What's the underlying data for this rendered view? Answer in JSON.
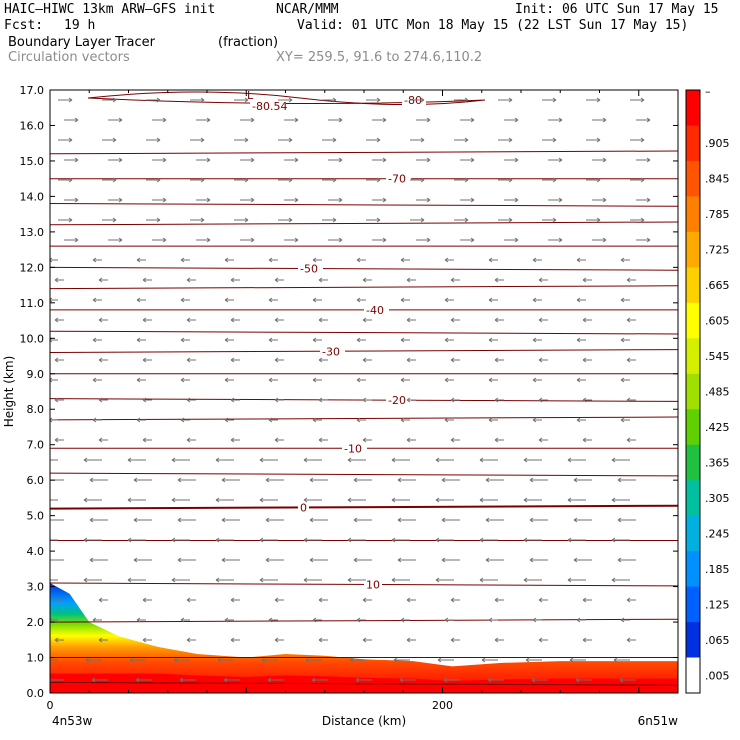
{
  "header": {
    "model": "HAIC–HIWC 13km ARW–GFS init",
    "center": "NCAR/MMM",
    "init": "Init: 06 UTC Sun 17 May 15",
    "fcst_label": "Fcst:",
    "fcst_value": "19 h",
    "valid": "Valid: 01 UTC Mon 18 May 15 (22 LST Sun 17 May 15)",
    "field1": "Boundary Layer Tracer",
    "field1_units": "(fraction)",
    "field2": "Circulation vectors",
    "xy": "XY= 259.5, 91.6 to 274.6,110.2"
  },
  "chart_data": {
    "type": "heatmap",
    "description_fields": [
      "Boundary Layer Tracer (fraction) shaded",
      "Temperature contours",
      "Circulation vectors"
    ],
    "ylabel": "Height (km)",
    "xlabel": "Distance (km)",
    "ylim": [
      0,
      17
    ],
    "xlim": [
      0,
      320
    ],
    "y_ticks": [
      "0.0",
      "1.0",
      "2.0",
      "3.0",
      "4.0",
      "5.0",
      "6.0",
      "7.0",
      "8.0",
      "9.0",
      "10.0",
      "11.0",
      "12.0",
      "13.0",
      "14.0",
      "15.0",
      "16.0",
      "17.0"
    ],
    "x_ticks": [
      {
        "v": 0,
        "label": "0"
      },
      {
        "v": 200,
        "label": "200"
      }
    ],
    "x_left_label": "4n53w",
    "x_right_label": "6n51w",
    "colorbar": {
      "labels": [
        "–",
        ".905",
        ".845",
        ".785",
        ".725",
        ".665",
        ".605",
        ".545",
        ".485",
        ".425",
        ".365",
        ".305",
        ".245",
        ".185",
        ".125",
        ".065",
        ".005"
      ],
      "colors": [
        "#ff0000",
        "#ff2a00",
        "#ff5500",
        "#ff8000",
        "#ffaa00",
        "#ffd000",
        "#ffff00",
        "#d4f000",
        "#a0e000",
        "#60d000",
        "#20c040",
        "#00c0a0",
        "#00b0e0",
        "#0090ff",
        "#0060ff",
        "#0030e0",
        "#ffffff"
      ]
    },
    "contours": [
      {
        "z": 0.3,
        "label": ""
      },
      {
        "z": 1.0,
        "label": ""
      },
      {
        "z": 2.0,
        "label": ""
      },
      {
        "z": 3.1,
        "label": "10"
      },
      {
        "z": 4.3,
        "label": ""
      },
      {
        "z": 5.2,
        "label": "0"
      },
      {
        "z": 6.2,
        "label": ""
      },
      {
        "z": 6.9,
        "label": "-10"
      },
      {
        "z": 7.7,
        "label": ""
      },
      {
        "z": 8.3,
        "label": "-20"
      },
      {
        "z": 9.0,
        "label": ""
      },
      {
        "z": 9.6,
        "label": "-30"
      },
      {
        "z": 10.2,
        "label": ""
      },
      {
        "z": 10.8,
        "label": "-40"
      },
      {
        "z": 11.4,
        "label": ""
      },
      {
        "z": 12.0,
        "label": "-50"
      },
      {
        "z": 12.6,
        "label": ""
      },
      {
        "z": 13.2,
        "label": ""
      },
      {
        "z": 13.8,
        "label": ""
      },
      {
        "z": 14.5,
        "label": "-70"
      },
      {
        "z": 15.2,
        "label": ""
      }
    ],
    "top_contour": {
      "label": "-80",
      "min_label": "-80.54",
      "low_marker": "L"
    },
    "tracer_top_profile": [
      {
        "x": 0,
        "z": 3.1
      },
      {
        "x": 10,
        "z": 2.8
      },
      {
        "x": 20,
        "z": 2.0
      },
      {
        "x": 35,
        "z": 1.6
      },
      {
        "x": 55,
        "z": 1.3
      },
      {
        "x": 75,
        "z": 1.1
      },
      {
        "x": 100,
        "z": 1.0
      },
      {
        "x": 120,
        "z": 1.1
      },
      {
        "x": 140,
        "z": 1.05
      },
      {
        "x": 160,
        "z": 0.95
      },
      {
        "x": 185,
        "z": 0.9
      },
      {
        "x": 205,
        "z": 0.75
      },
      {
        "x": 230,
        "z": 0.85
      },
      {
        "x": 260,
        "z": 0.9
      },
      {
        "x": 290,
        "z": 0.9
      },
      {
        "x": 320,
        "z": 0.9
      }
    ],
    "grid": false,
    "legend": "right colorbar"
  }
}
